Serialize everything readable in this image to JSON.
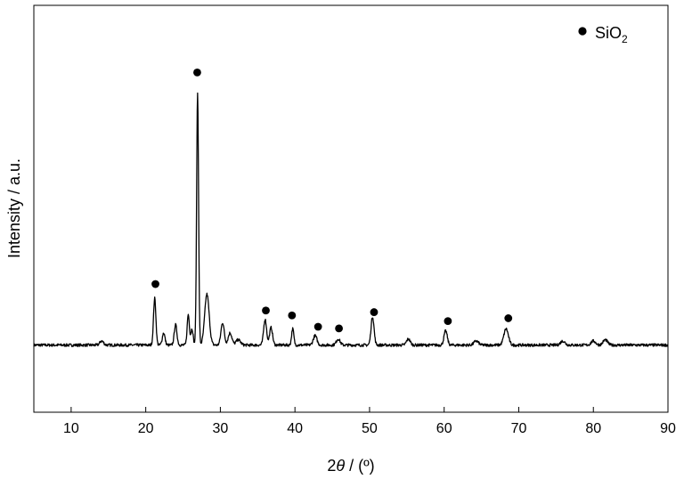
{
  "chart_data": {
    "type": "line",
    "xlabel_prefix": "2",
    "xlabel_var": "θ",
    "xlabel_suffix": " / (º)",
    "ylabel": "Intensity / a.u.",
    "xlim": [
      5,
      90
    ],
    "ylim": [
      0,
      100
    ],
    "xticks": [
      10,
      20,
      30,
      40,
      50,
      60,
      70,
      80,
      90
    ],
    "yticks_shown": false,
    "grid": false,
    "legend": {
      "position": "top-right",
      "marker": "filled-circle",
      "label_main": "SiO",
      "label_sub": "2"
    },
    "colors": {
      "line": "#000000",
      "marker": "#000000"
    },
    "series": [
      {
        "baseline": 16.5,
        "peaks": [
          [
            14.1,
            1.0,
            0.25
          ],
          [
            21.2,
            11.5,
            0.16
          ],
          [
            22.4,
            3.0,
            0.18
          ],
          [
            24.0,
            5.0,
            0.18
          ],
          [
            25.7,
            7.5,
            0.15
          ],
          [
            26.2,
            4.0,
            0.15
          ],
          [
            26.95,
            62.0,
            0.13
          ],
          [
            28.2,
            12.5,
            0.3
          ],
          [
            30.3,
            5.5,
            0.22
          ],
          [
            31.3,
            3.0,
            0.25
          ],
          [
            32.4,
            1.3,
            0.3
          ],
          [
            36.0,
            6.3,
            0.2
          ],
          [
            36.8,
            4.3,
            0.2
          ],
          [
            39.7,
            4.0,
            0.15
          ],
          [
            42.7,
            2.3,
            0.25
          ],
          [
            45.8,
            1.5,
            0.25
          ],
          [
            50.4,
            7.0,
            0.2
          ],
          [
            55.2,
            1.5,
            0.25
          ],
          [
            60.2,
            3.5,
            0.22
          ],
          [
            64.3,
            1.0,
            0.3
          ],
          [
            68.3,
            4.0,
            0.3
          ],
          [
            75.9,
            1.0,
            0.3
          ],
          [
            80.0,
            1.0,
            0.3
          ],
          [
            81.6,
            1.3,
            0.3
          ]
        ]
      }
    ],
    "sio2_markers": [
      {
        "x": 21.3,
        "y": 31.5
      },
      {
        "x": 26.9,
        "y": 83.5
      },
      {
        "x": 36.1,
        "y": 25.0
      },
      {
        "x": 39.6,
        "y": 23.8
      },
      {
        "x": 43.1,
        "y": 21.0
      },
      {
        "x": 45.9,
        "y": 20.6
      },
      {
        "x": 50.6,
        "y": 24.6
      },
      {
        "x": 60.5,
        "y": 22.4
      },
      {
        "x": 68.6,
        "y": 23.1
      }
    ]
  }
}
